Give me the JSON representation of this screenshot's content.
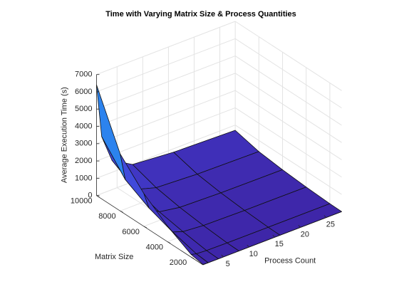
{
  "chart_data": {
    "type": "surface",
    "title": "Time with Varying Matrix Size & Process Quantities",
    "x_label": "Process Count",
    "y_label": "Matrix Size",
    "z_label": "Average Execution Time (s)",
    "x": [
      1,
      2,
      4,
      8,
      16,
      28
    ],
    "y": [
      1000,
      2000,
      4000,
      6000,
      8000,
      10000
    ],
    "z": [
      [
        20,
        10,
        6,
        4,
        3,
        3
      ],
      [
        150,
        80,
        40,
        25,
        20,
        18
      ],
      [
        900,
        450,
        240,
        140,
        100,
        90
      ],
      [
        1900,
        950,
        500,
        300,
        230,
        200
      ],
      [
        3300,
        1700,
        900,
        550,
        420,
        360
      ],
      [
        6400,
        3300,
        1700,
        1000,
        800,
        700
      ]
    ],
    "xlim": [
      1,
      28
    ],
    "xticks": [
      5,
      10,
      15,
      20,
      25
    ],
    "ylim": [
      1000,
      10000
    ],
    "yticks": [
      2000,
      4000,
      6000,
      8000,
      10000
    ],
    "zlim": [
      0,
      7000
    ],
    "zticks": [
      0,
      1000,
      2000,
      3000,
      4000,
      5000,
      6000,
      7000
    ],
    "colormap": [
      "#3e26a8",
      "#4243d8",
      "#2e7ff0",
      "#16a6d9",
      "#13bdce"
    ],
    "clim": [
      0,
      7000
    ],
    "view": [
      -37.5,
      30
    ],
    "grid": true
  }
}
